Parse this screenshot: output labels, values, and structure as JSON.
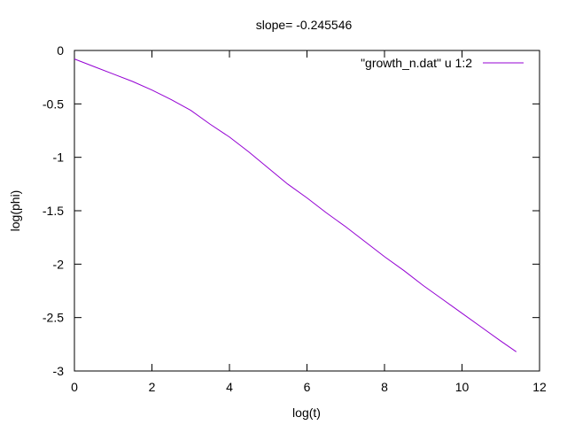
{
  "chart_data": {
    "type": "line",
    "title": "slope= -0.245546",
    "xlabel": "log(t)",
    "ylabel": "log(phi)",
    "xlim": [
      0,
      12
    ],
    "ylim": [
      -3,
      0
    ],
    "xticks": [
      0,
      2,
      4,
      6,
      8,
      10,
      12
    ],
    "yticks": [
      0,
      -0.5,
      -1,
      -1.5,
      -2,
      -2.5,
      -3
    ],
    "xtick_labels": [
      "0",
      "2",
      "4",
      "6",
      "8",
      "10",
      "12"
    ],
    "ytick_labels": [
      "0",
      "-0.5",
      "-1",
      "-1.5",
      "-2",
      "-2.5",
      "-3"
    ],
    "grid": false,
    "legend_position": "top-right",
    "series": [
      {
        "name": "\"growth_n.dat\" u 1:2",
        "color": "#9400d3",
        "x": [
          0,
          0.5,
          1.0,
          1.5,
          2.0,
          2.5,
          3.0,
          3.5,
          4.0,
          4.5,
          5.0,
          5.5,
          6.0,
          6.5,
          7.0,
          7.5,
          8.0,
          8.5,
          9.0,
          9.5,
          10.0,
          10.5,
          11.0,
          11.4
        ],
        "y": [
          -0.08,
          -0.15,
          -0.22,
          -0.29,
          -0.37,
          -0.46,
          -0.56,
          -0.69,
          -0.81,
          -0.95,
          -1.1,
          -1.25,
          -1.38,
          -1.52,
          -1.65,
          -1.79,
          -1.93,
          -2.06,
          -2.2,
          -2.33,
          -2.46,
          -2.59,
          -2.72,
          -2.82
        ]
      }
    ]
  }
}
